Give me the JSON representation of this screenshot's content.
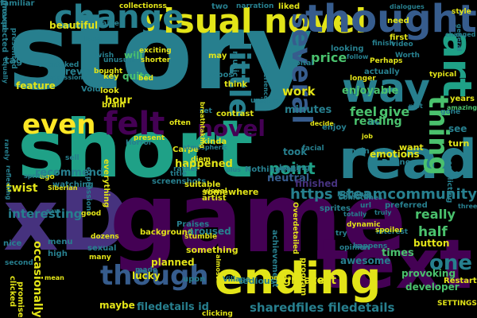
{
  "cloud": {
    "palette": {
      "purple": "#440154",
      "indigo": "#46327e",
      "blue": "#365c8d",
      "teal": "#277f8e",
      "green": "#1fa187",
      "lime": "#4ac16d",
      "yellow": "#fde725",
      "khaki": "#e2e418"
    },
    "words": [
      {
        "text": "story",
        "color": "teal",
        "orient": "h"
      },
      {
        "text": "short",
        "color": "green",
        "orient": "h"
      },
      {
        "text": "xD",
        "color": "indigo",
        "orient": "h"
      },
      {
        "text": "game",
        "color": "purple",
        "orient": "h"
      },
      {
        "text": "read",
        "color": "teal",
        "orient": "h"
      },
      {
        "text": "text",
        "color": "purple",
        "orient": "h"
      },
      {
        "text": "ending",
        "color": "khaki",
        "orient": "h"
      },
      {
        "text": "visual novel",
        "color": "khaki",
        "orient": "h"
      },
      {
        "text": "thought",
        "color": "blue",
        "orient": "h"
      },
      {
        "text": "change",
        "color": "teal",
        "orient": "h"
      },
      {
        "text": "way",
        "color": "teal",
        "orient": "h"
      },
      {
        "text": "art",
        "color": "green",
        "orient": "v"
      },
      {
        "text": "even",
        "color": "yellow",
        "orient": "h"
      },
      {
        "text": "felt",
        "color": "purple",
        "orient": "h"
      },
      {
        "text": "novel",
        "color": "purple",
        "orient": "h"
      },
      {
        "text": "thing",
        "color": "lime",
        "orient": "v"
      },
      {
        "text": "several",
        "color": "blue",
        "orient": "v"
      },
      {
        "text": "little",
        "color": "teal",
        "orient": "v"
      },
      {
        "text": "though",
        "color": "blue",
        "orient": "h"
      },
      {
        "text": "one",
        "color": "teal",
        "orient": "h"
      },
      {
        "text": "point",
        "color": "green",
        "orient": "h"
      },
      {
        "text": "https steamcommunity",
        "color": "teal",
        "orient": "h"
      },
      {
        "text": "sharedfiles filedetails",
        "color": "teal",
        "orient": "h"
      },
      {
        "text": "filedetails id",
        "color": "teal",
        "orient": "h"
      },
      {
        "text": "half",
        "color": "lime",
        "orient": "h"
      },
      {
        "text": "really",
        "color": "lime",
        "orient": "h"
      },
      {
        "text": "price",
        "color": "lime",
        "orient": "h"
      },
      {
        "text": "give",
        "color": "lime",
        "orient": "h"
      },
      {
        "text": "feel",
        "color": "lime",
        "orient": "h"
      },
      {
        "text": "work",
        "color": "khaki",
        "orient": "h"
      },
      {
        "text": "reading",
        "color": "lime",
        "orient": "h"
      },
      {
        "text": "enjoyable",
        "color": "lime",
        "orient": "h"
      },
      {
        "text": "minutes",
        "color": "teal",
        "orient": "h"
      },
      {
        "text": "times",
        "color": "lime",
        "orient": "h"
      },
      {
        "text": "greatest",
        "color": "khaki",
        "orient": "h"
      },
      {
        "text": "button",
        "color": "khaki",
        "orient": "h"
      },
      {
        "text": "provoking",
        "color": "lime",
        "orient": "h"
      },
      {
        "text": "developer",
        "color": "lime",
        "orient": "h"
      },
      {
        "text": "interesting",
        "color": "teal",
        "orient": "h"
      },
      {
        "text": "recommend",
        "color": "teal",
        "orient": "h"
      },
      {
        "text": "twist",
        "color": "khaki",
        "orient": "h"
      },
      {
        "text": "happened",
        "color": "khaki",
        "orient": "h"
      },
      {
        "text": "neutral",
        "color": "blue",
        "orient": "h"
      },
      {
        "text": "took",
        "color": "teal",
        "orient": "h"
      },
      {
        "text": "finished",
        "color": "indigo",
        "orient": "h"
      },
      {
        "text": "hour",
        "color": "khaki",
        "orient": "h"
      },
      {
        "text": "quite",
        "color": "lime",
        "orient": "h"
      },
      {
        "text": "will",
        "color": "lime",
        "orient": "h"
      },
      {
        "text": "review",
        "color": "teal",
        "orient": "h"
      },
      {
        "text": "feature",
        "color": "khaki",
        "orient": "h"
      },
      {
        "text": "tag",
        "color": "teal",
        "orient": "h"
      },
      {
        "text": "loop",
        "color": "teal",
        "orient": "h"
      },
      {
        "text": "beautiful",
        "color": "khaki",
        "orient": "h"
      },
      {
        "text": "table",
        "color": "teal",
        "orient": "h"
      },
      {
        "text": "collectionss",
        "color": "khaki",
        "orient": "h"
      },
      {
        "text": "two",
        "color": "teal",
        "orient": "h"
      },
      {
        "text": "narration",
        "color": "teal",
        "orient": "h"
      },
      {
        "text": "liked",
        "color": "khaki",
        "orient": "h"
      },
      {
        "text": "need",
        "color": "khaki",
        "orient": "h"
      },
      {
        "text": "finish",
        "color": "teal",
        "orient": "h"
      },
      {
        "text": "first",
        "color": "khaki",
        "orient": "h"
      },
      {
        "text": "video",
        "color": "teal",
        "orient": "h"
      },
      {
        "text": "style",
        "color": "khaki",
        "orient": "h"
      },
      {
        "text": "changed",
        "color": "teal",
        "orient": "h"
      },
      {
        "text": "Worth",
        "color": "teal",
        "orient": "h"
      },
      {
        "text": "typical",
        "color": "khaki",
        "orient": "h"
      },
      {
        "text": "years",
        "color": "khaki",
        "orient": "h"
      },
      {
        "text": "plot",
        "color": "teal",
        "orient": "h"
      },
      {
        "text": "amazing",
        "color": "lime",
        "orient": "h"
      },
      {
        "text": "see",
        "color": "teal",
        "orient": "h"
      },
      {
        "text": "turn",
        "color": "khaki",
        "orient": "h"
      },
      {
        "text": "want",
        "color": "khaki",
        "orient": "h"
      },
      {
        "text": "emotions",
        "color": "khaki",
        "orient": "h"
      },
      {
        "text": "main",
        "color": "teal",
        "orient": "h"
      },
      {
        "text": "Dunno",
        "color": "teal",
        "orient": "h"
      },
      {
        "text": "job",
        "color": "khaki",
        "orient": "h"
      },
      {
        "text": "enjoy",
        "color": "teal",
        "orient": "h"
      },
      {
        "text": "decide",
        "color": "khaki",
        "orient": "h"
      },
      {
        "text": "life",
        "color": "teal",
        "orient": "h"
      },
      {
        "text": "Perhaps",
        "color": "khaki",
        "orient": "h"
      },
      {
        "text": "actually",
        "color": "teal",
        "orient": "h"
      },
      {
        "text": "looking",
        "color": "teal",
        "orient": "h"
      },
      {
        "text": "longer",
        "color": "khaki",
        "orient": "h"
      },
      {
        "text": "follow",
        "color": "teal",
        "orient": "h"
      },
      {
        "text": "think",
        "color": "khaki",
        "orient": "h"
      },
      {
        "text": "typos",
        "color": "teal",
        "orient": "h"
      },
      {
        "text": "may",
        "color": "khaki",
        "orient": "h"
      },
      {
        "text": "music",
        "color": "teal",
        "orient": "v"
      },
      {
        "text": "exciting",
        "color": "khaki",
        "orient": "h"
      },
      {
        "text": "shorter",
        "color": "khaki",
        "orient": "h"
      },
      {
        "text": "bed",
        "color": "khaki",
        "orient": "h"
      },
      {
        "text": "unusual",
        "color": "teal",
        "orient": "h"
      },
      {
        "text": "wish",
        "color": "teal",
        "orient": "h"
      },
      {
        "text": "bought",
        "color": "khaki",
        "orient": "h"
      },
      {
        "text": "key",
        "color": "khaki",
        "orient": "h"
      },
      {
        "text": "look",
        "color": "khaki",
        "orient": "h"
      },
      {
        "text": "brain",
        "color": "khaki",
        "orient": "h"
      },
      {
        "text": "Void",
        "color": "teal",
        "orient": "h"
      },
      {
        "text": "expressions",
        "color": "teal",
        "orient": "h"
      },
      {
        "text": "often",
        "color": "khaki",
        "orient": "h"
      },
      {
        "text": "set",
        "color": "teal",
        "orient": "h"
      },
      {
        "text": "contrast",
        "color": "khaki",
        "orient": "h"
      },
      {
        "text": "kinda",
        "color": "khaki",
        "orient": "h"
      },
      {
        "text": "facial",
        "color": "teal",
        "orient": "h"
      },
      {
        "text": "present",
        "color": "khaki",
        "orient": "h"
      },
      {
        "text": "Carpe",
        "color": "khaki",
        "orient": "h"
      },
      {
        "text": "diem",
        "color": "khaki",
        "orient": "h"
      },
      {
        "text": "rather",
        "color": "teal",
        "orient": "h"
      },
      {
        "text": "title",
        "color": "teal",
        "orient": "h"
      },
      {
        "text": "watching",
        "color": "teal",
        "orient": "h"
      },
      {
        "text": "sell",
        "color": "teal",
        "orient": "h"
      },
      {
        "text": "everything",
        "color": "khaki",
        "orient": "v"
      },
      {
        "text": "expressions",
        "color": "teal",
        "orient": "v"
      },
      {
        "text": "screenshots",
        "color": "teal",
        "orient": "h"
      },
      {
        "text": "suitable",
        "color": "khaki",
        "orient": "h"
      },
      {
        "text": "somewhere",
        "color": "khaki",
        "orient": "h"
      },
      {
        "text": "visual",
        "color": "khaki",
        "orient": "h"
      },
      {
        "text": "artist",
        "color": "khaki",
        "orient": "h"
      },
      {
        "text": "Nothingness",
        "color": "teal",
        "orient": "h"
      },
      {
        "text": "hoping",
        "color": "teal",
        "orient": "h"
      },
      {
        "text": "sometimes",
        "color": "teal",
        "orient": "h"
      },
      {
        "text": "preferred",
        "color": "teal",
        "orient": "h"
      },
      {
        "text": "Nothing",
        "color": "teal",
        "orient": "h"
      },
      {
        "text": "url",
        "color": "teal",
        "orient": "h"
      },
      {
        "text": "truly",
        "color": "teal",
        "orient": "h"
      },
      {
        "text": "sprites",
        "color": "teal",
        "orient": "h"
      },
      {
        "text": "totally",
        "color": "teal",
        "orient": "h"
      },
      {
        "text": "three",
        "color": "teal",
        "orient": "h"
      },
      {
        "text": "saw",
        "color": "teal",
        "orient": "h"
      },
      {
        "text": "good",
        "color": "khaki",
        "orient": "h"
      },
      {
        "text": "nice",
        "color": "teal",
        "orient": "h"
      },
      {
        "text": "menu",
        "color": "teal",
        "orient": "h"
      },
      {
        "text": "high",
        "color": "teal",
        "orient": "h"
      },
      {
        "text": "sexual",
        "color": "teal",
        "orient": "h"
      },
      {
        "text": "dozens",
        "color": "khaki",
        "orient": "h"
      },
      {
        "text": "many",
        "color": "khaki",
        "orient": "h"
      },
      {
        "text": "background",
        "color": "khaki",
        "orient": "h"
      },
      {
        "text": "aroused",
        "color": "teal",
        "orient": "h"
      },
      {
        "text": "Praises",
        "color": "teal",
        "orient": "h"
      },
      {
        "text": "stumble",
        "color": "khaki",
        "orient": "h"
      },
      {
        "text": "something",
        "color": "khaki",
        "orient": "h"
      },
      {
        "text": "planned",
        "color": "khaki",
        "orient": "h"
      },
      {
        "text": "lucky",
        "color": "khaki",
        "orient": "h"
      },
      {
        "text": "made",
        "color": "teal",
        "orient": "h"
      },
      {
        "text": "upon",
        "color": "teal",
        "orient": "h"
      },
      {
        "text": "Village",
        "color": "teal",
        "orient": "h"
      },
      {
        "text": "almost",
        "color": "khaki",
        "orient": "v"
      },
      {
        "text": "Overdetailed",
        "color": "khaki",
        "orient": "v"
      },
      {
        "text": "achievement",
        "color": "teal",
        "orient": "v"
      },
      {
        "text": "program",
        "color": "khaki",
        "orient": "v"
      },
      {
        "text": "complaint",
        "color": "khaki",
        "orient": "h"
      },
      {
        "text": "go",
        "color": "khaki",
        "orient": "h"
      },
      {
        "text": "interest",
        "color": "teal",
        "orient": "h"
      },
      {
        "text": "spoiler",
        "color": "khaki",
        "orient": "h"
      },
      {
        "text": "Restart",
        "color": "khaki",
        "orient": "h"
      },
      {
        "text": "SETTINGS",
        "color": "khaki",
        "orient": "h"
      },
      {
        "text": "awesome",
        "color": "teal",
        "orient": "h"
      },
      {
        "text": "dynamic",
        "color": "khaki",
        "orient": "h"
      },
      {
        "text": "opinion",
        "color": "teal",
        "orient": "h"
      },
      {
        "text": "try",
        "color": "teal",
        "orient": "h"
      },
      {
        "text": "clicked",
        "color": "khaki",
        "orient": "v"
      },
      {
        "text": "occasionally",
        "color": "khaki",
        "orient": "v"
      },
      {
        "text": "promise",
        "color": "khaki",
        "orient": "v"
      },
      {
        "text": "maybe",
        "color": "khaki",
        "orient": "h"
      },
      {
        "text": "clicking",
        "color": "khaki",
        "orient": "h"
      },
      {
        "text": "second",
        "color": "teal",
        "orient": "h"
      },
      {
        "text": "mean",
        "color": "khaki",
        "orient": "h"
      },
      {
        "text": "tedious",
        "color": "teal",
        "orient": "h"
      },
      {
        "text": "Horror",
        "color": "teal",
        "orient": "h"
      },
      {
        "text": "atmospheric",
        "color": "teal",
        "orient": "h"
      },
      {
        "text": "ago",
        "color": "khaki",
        "orient": "h"
      },
      {
        "text": "rarely",
        "color": "teal",
        "orient": "v"
      },
      {
        "text": "reflecting",
        "color": "teal",
        "orient": "v"
      },
      {
        "text": "sprites",
        "color": "teal",
        "orient": "h"
      },
      {
        "text": "equally",
        "color": "teal",
        "orient": "v"
      },
      {
        "text": "presented",
        "color": "teal",
        "orient": "v"
      },
      {
        "text": "overtaked",
        "color": "teal",
        "orient": "h"
      },
      {
        "text": "experience",
        "color": "teal",
        "orient": "v"
      },
      {
        "text": "unique",
        "color": "teal",
        "orient": "h"
      },
      {
        "text": "breathtaking",
        "color": "khaki",
        "orient": "v"
      },
      {
        "text": "general",
        "color": "teal",
        "orient": "v"
      },
      {
        "text": "conflicting",
        "color": "teal",
        "orient": "v"
      },
      {
        "text": "gone",
        "color": "teal",
        "orient": "h"
      },
      {
        "text": "dialogues",
        "color": "teal",
        "orient": "h"
      },
      {
        "text": "capital",
        "color": "teal",
        "orient": "h"
      },
      {
        "text": "plus",
        "color": "teal",
        "orient": "h"
      },
      {
        "text": "Siberian",
        "color": "khaki",
        "orient": "h"
      },
      {
        "text": "happens",
        "color": "teal",
        "orient": "h"
      },
      {
        "text": "born",
        "color": "teal",
        "orient": "h"
      },
      {
        "text": "moved",
        "color": "teal",
        "orient": "v"
      },
      {
        "text": "familiar",
        "color": "teal",
        "orient": "h"
      },
      {
        "text": "unexpected",
        "color": "teal",
        "orient": "v"
      }
    ]
  }
}
